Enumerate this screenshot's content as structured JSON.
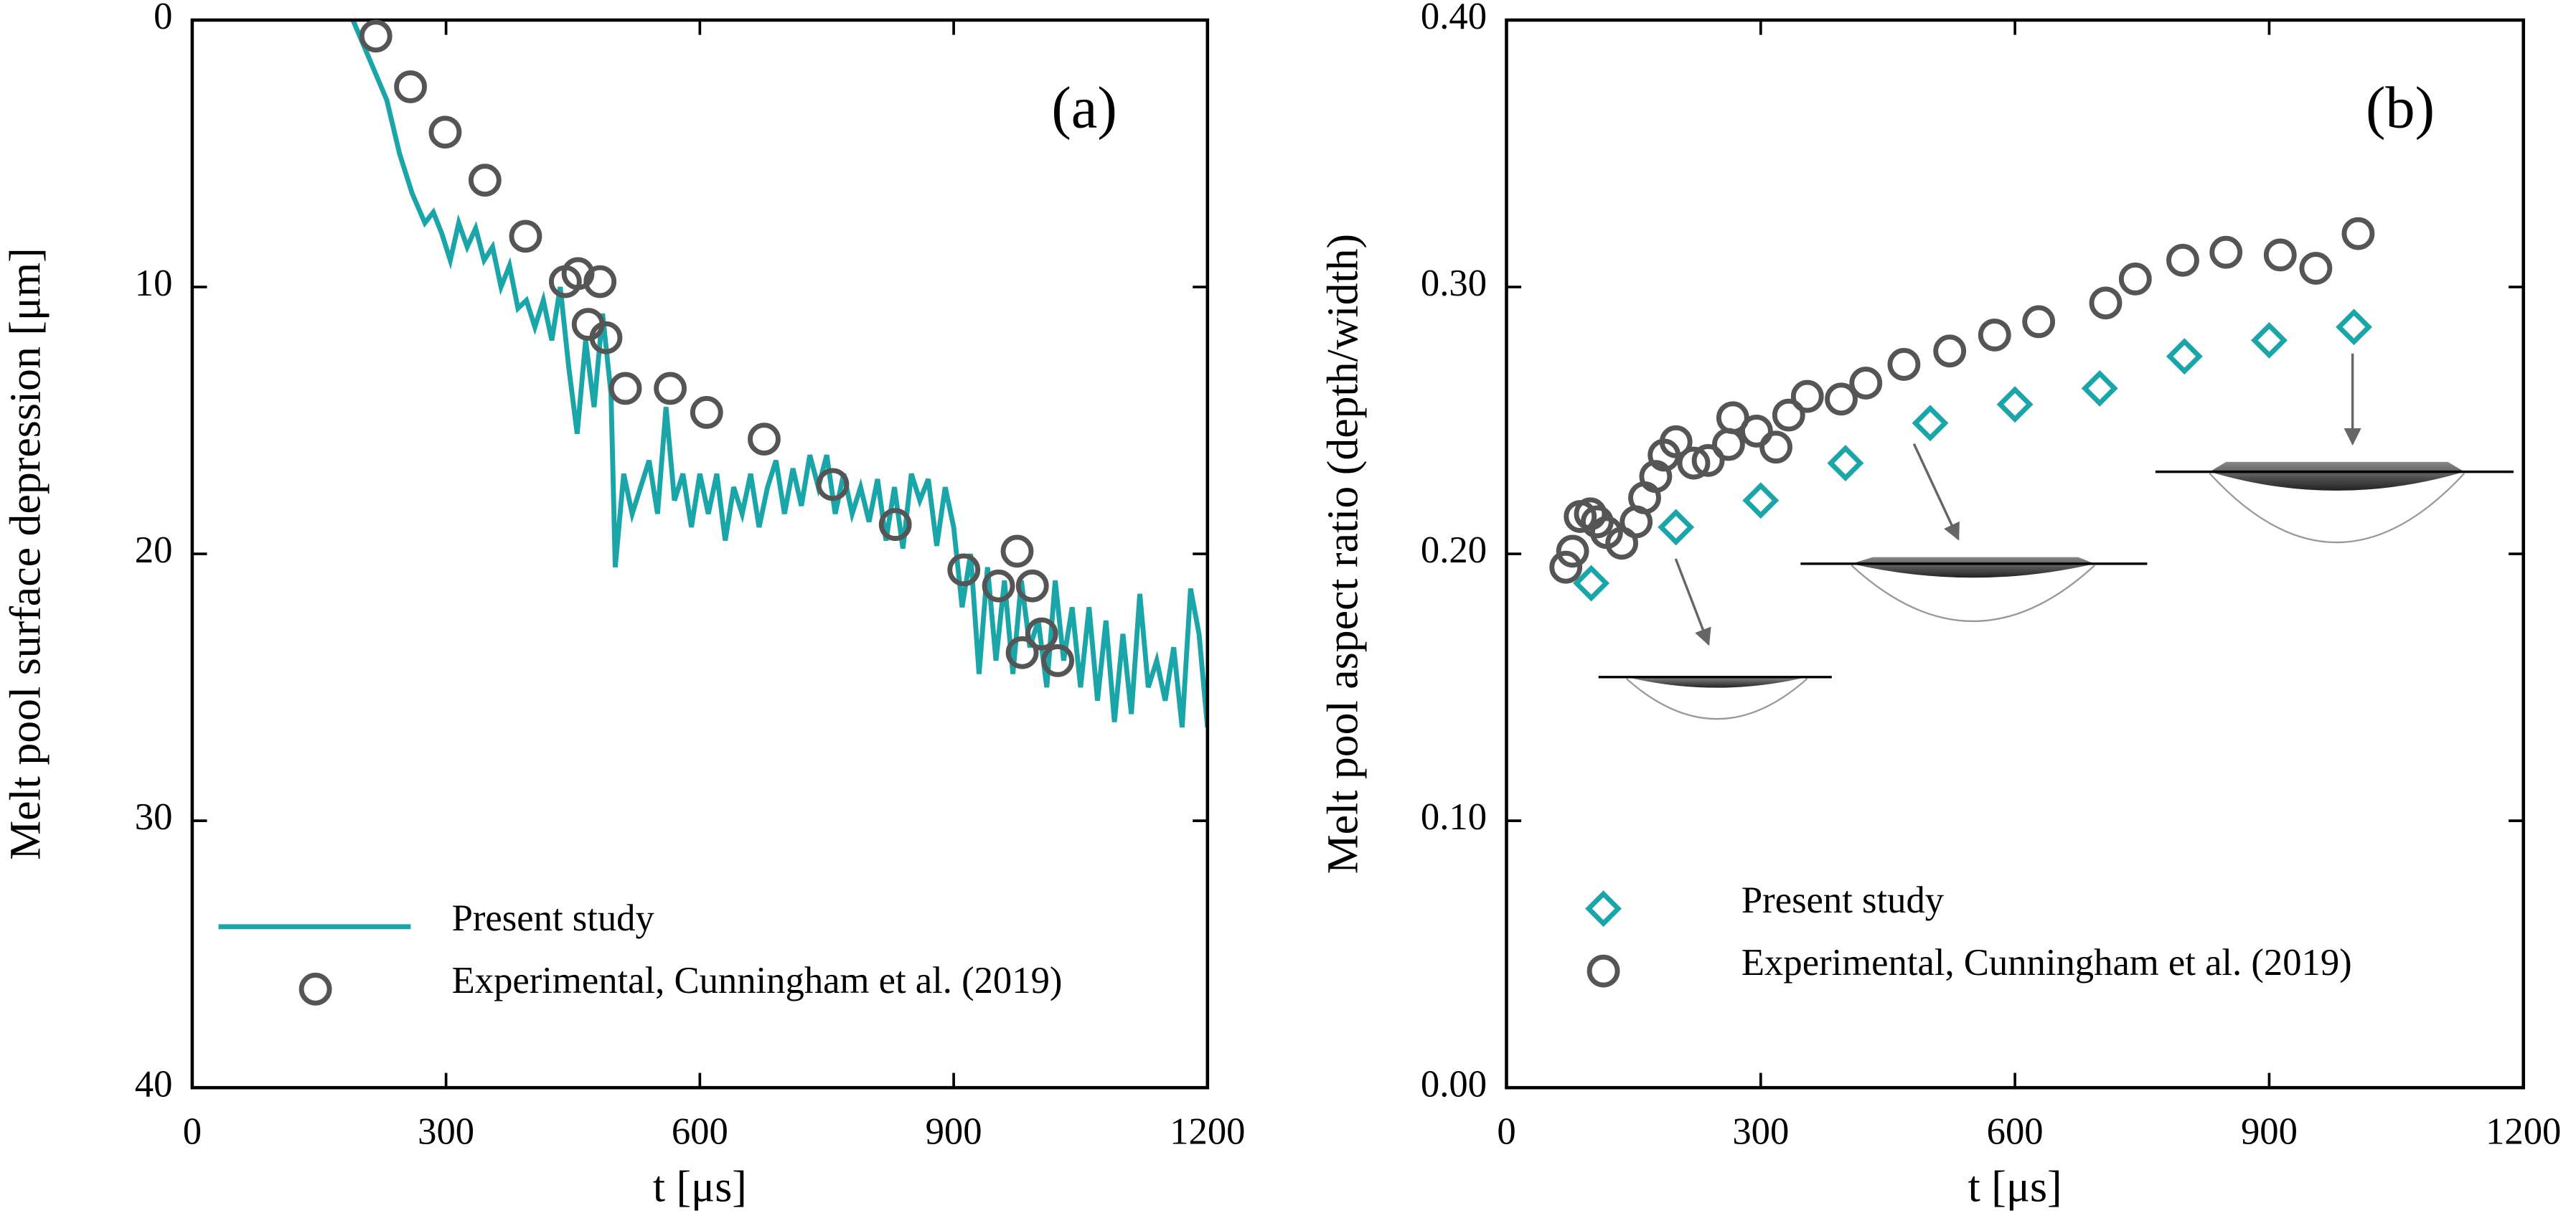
{
  "chart_data": [
    {
      "type": "line",
      "panel_label": "(a)",
      "x_label": "t [μs]",
      "y_label": "Melt pool surface depression [μm]",
      "xlim": [
        0,
        1200
      ],
      "xticks": [
        0,
        300,
        600,
        900,
        1200
      ],
      "ylim": [
        0,
        40
      ],
      "yticks": [
        0,
        10,
        20,
        30,
        40
      ],
      "y_inverted": true,
      "legend": "lower left",
      "series": [
        {
          "name": "Present study",
          "type": "line",
          "color": "#1aa6a8",
          "x": [
            190,
            210,
            230,
            245,
            260,
            275,
            285,
            295,
            305,
            315,
            325,
            335,
            345,
            355,
            365,
            375,
            385,
            395,
            405,
            415,
            425,
            435,
            445,
            455,
            465,
            475,
            485,
            495,
            500,
            510,
            520,
            530,
            540,
            550,
            560,
            570,
            580,
            590,
            600,
            610,
            620,
            630,
            640,
            650,
            660,
            670,
            680,
            690,
            700,
            710,
            720,
            730,
            740,
            750,
            760,
            770,
            780,
            790,
            800,
            810,
            820,
            830,
            840,
            850,
            860,
            870,
            880,
            890,
            900,
            910,
            920,
            930,
            940,
            950,
            960,
            970,
            980,
            990,
            1000,
            1010,
            1020,
            1030,
            1040,
            1050,
            1060,
            1070,
            1080,
            1090,
            1100,
            1110,
            1120,
            1130,
            1140,
            1150,
            1160,
            1170,
            1180,
            1190,
            1200
          ],
          "values": [
            0,
            1.5,
            3,
            5,
            6.5,
            7.6,
            7.2,
            8,
            9,
            7.6,
            8.5,
            7.8,
            9,
            8.5,
            10,
            9.2,
            10.8,
            10.5,
            11.5,
            10.5,
            12,
            10,
            13,
            15.5,
            12,
            14.5,
            11,
            14,
            20.5,
            17,
            18.5,
            17.5,
            16.5,
            18.5,
            14.5,
            18,
            17,
            19,
            17,
            18.5,
            17,
            19.5,
            17.5,
            18.5,
            17,
            19,
            17.5,
            16.5,
            18.5,
            16.8,
            18.2,
            16.3,
            17.5,
            16.3,
            18.5,
            17,
            18.5,
            17.5,
            18.8,
            17.2,
            19.5,
            17.5,
            19.8,
            17,
            18,
            17.2,
            19.7,
            17.5,
            19,
            22,
            20,
            24.5,
            20.5,
            24,
            21,
            24.5,
            21,
            23.5,
            22.5,
            25,
            21,
            24,
            22,
            25,
            22,
            25.5,
            22.5,
            26.3,
            23,
            26,
            21.5,
            25,
            24,
            25.5,
            23.5,
            26.5,
            21.3,
            23,
            26.5
          ]
        },
        {
          "name": "Experimental, Cunningham et al. (2019)",
          "type": "scatter",
          "marker": "circle",
          "color": "#555555",
          "x": [
            217,
            258,
            299,
            346,
            394,
            441,
            456,
            482,
            468,
            489,
            512,
            565,
            608,
            676,
            757,
            831,
            912,
            953,
            975,
            993,
            981,
            1004,
            1023
          ],
          "values": [
            0.6,
            2.5,
            4.2,
            6.0,
            8.1,
            9.8,
            9.5,
            9.8,
            11.4,
            11.9,
            13.8,
            13.8,
            14.7,
            15.7,
            17.4,
            18.9,
            20.6,
            21.2,
            19.9,
            21.2,
            23.7,
            23.0,
            24.0
          ]
        }
      ]
    },
    {
      "type": "scatter",
      "panel_label": "(b)",
      "x_label": "t [μs]",
      "y_label": "Melt pool aspect ratio (depth/width)",
      "xlim": [
        0,
        1200
      ],
      "xticks": [
        0,
        300,
        600,
        900,
        1200
      ],
      "ylim": [
        0,
        0.4
      ],
      "yticks": [
        {
          "value": 0,
          "label": "0.00"
        },
        {
          "value": 0.1,
          "label": "0.10"
        },
        {
          "value": 0.2,
          "label": "0.20"
        },
        {
          "value": 0.3,
          "label": "0.30"
        },
        {
          "value": 0.4,
          "label": "0.40"
        }
      ],
      "y_inverted": false,
      "legend": "lower left",
      "series": [
        {
          "name": "Present study",
          "type": "scatter",
          "marker": "diamond",
          "color": "#1aa6a8",
          "x": [
            100,
            200,
            300,
            400,
            500,
            600,
            700,
            800,
            900,
            1000
          ],
          "values": [
            0.189,
            0.21,
            0.22,
            0.234,
            0.249,
            0.256,
            0.262,
            0.274,
            0.28,
            0.285
          ]
        },
        {
          "name": "Experimental, Cunningham et al. (2019)",
          "type": "scatter",
          "marker": "circle",
          "color": "#555555",
          "x": [
            70,
            78,
            87,
            99,
            107,
            118,
            136,
            153,
            163,
            176,
            186,
            200,
            221,
            238,
            262,
            267,
            295,
            318,
            333,
            355,
            395,
            424,
            469,
            523,
            576,
            628,
            707,
            742,
            798,
            849,
            913,
            955,
            1005
          ],
          "values": [
            0.195,
            0.201,
            0.214,
            0.215,
            0.212,
            0.208,
            0.204,
            0.212,
            0.221,
            0.229,
            0.237,
            0.242,
            0.234,
            0.235,
            0.241,
            0.251,
            0.246,
            0.24,
            0.252,
            0.259,
            0.258,
            0.264,
            0.271,
            0.276,
            0.282,
            0.287,
            0.294,
            0.303,
            0.31,
            0.313,
            0.312,
            0.307,
            0.32
          ]
        }
      ]
    }
  ]
}
